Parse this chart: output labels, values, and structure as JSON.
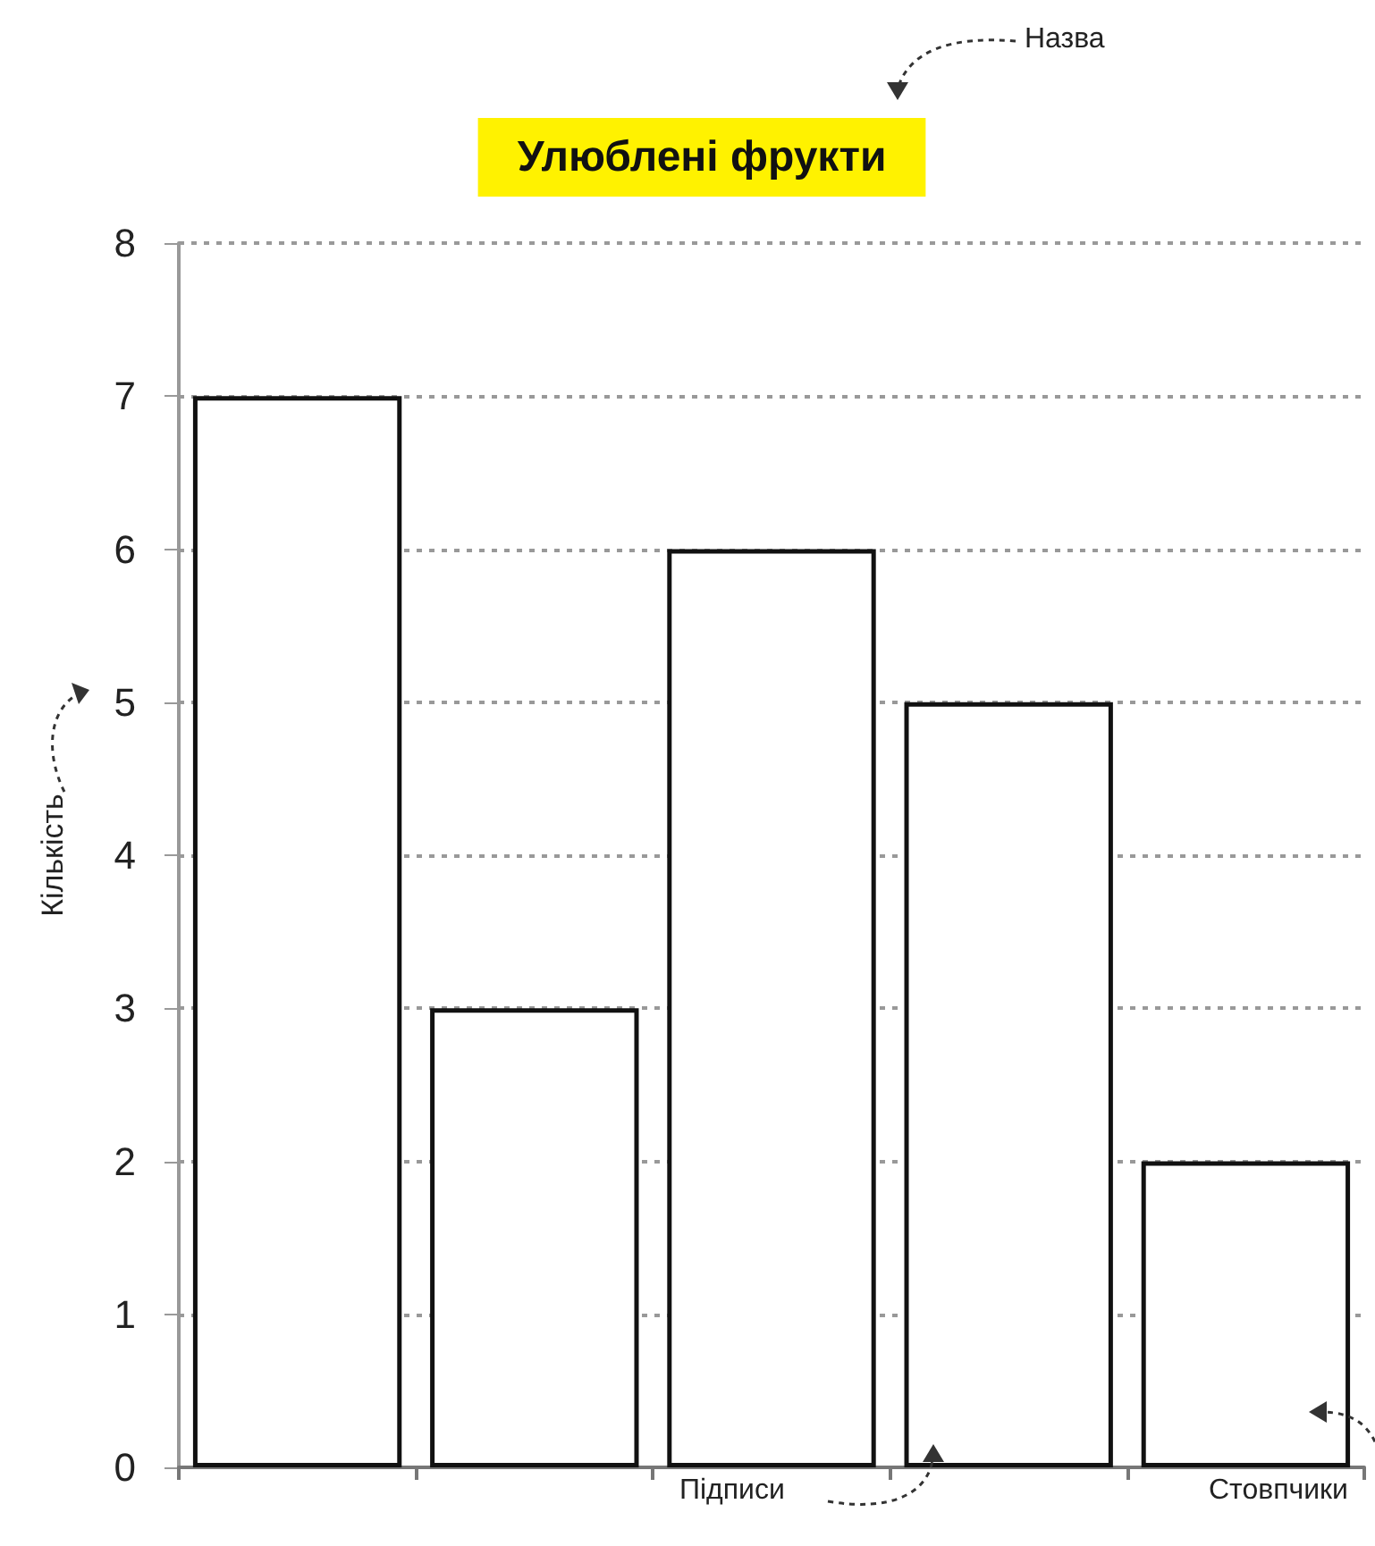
{
  "chart_data": {
    "type": "bar",
    "title": "Улюблені фрукти",
    "ylabel": "Кількість",
    "categories": [
      null,
      null,
      null,
      null,
      null
    ],
    "values": [
      7,
      3,
      6,
      5,
      2
    ],
    "color": "#ffffff",
    "ylim": [
      0,
      8
    ],
    "yticks": [
      0,
      1,
      2,
      3,
      4,
      5,
      6,
      7,
      8
    ],
    "grid": "y",
    "annotations": [
      "Назва",
      "Підписи",
      "Стовпчики"
    ]
  }
}
